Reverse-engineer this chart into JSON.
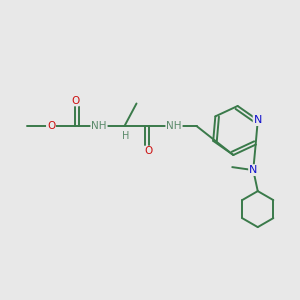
{
  "bg_color": "#e8e8e8",
  "bond_color": "#3a7a4a",
  "n_color": "#1010cc",
  "o_color": "#cc1010",
  "h_color": "#5a8a6a",
  "figsize": [
    3.0,
    3.0
  ],
  "dpi": 100,
  "lw": 1.4,
  "fs": 7.5,
  "xlim": [
    0,
    10
  ],
  "ylim": [
    0,
    10
  ]
}
